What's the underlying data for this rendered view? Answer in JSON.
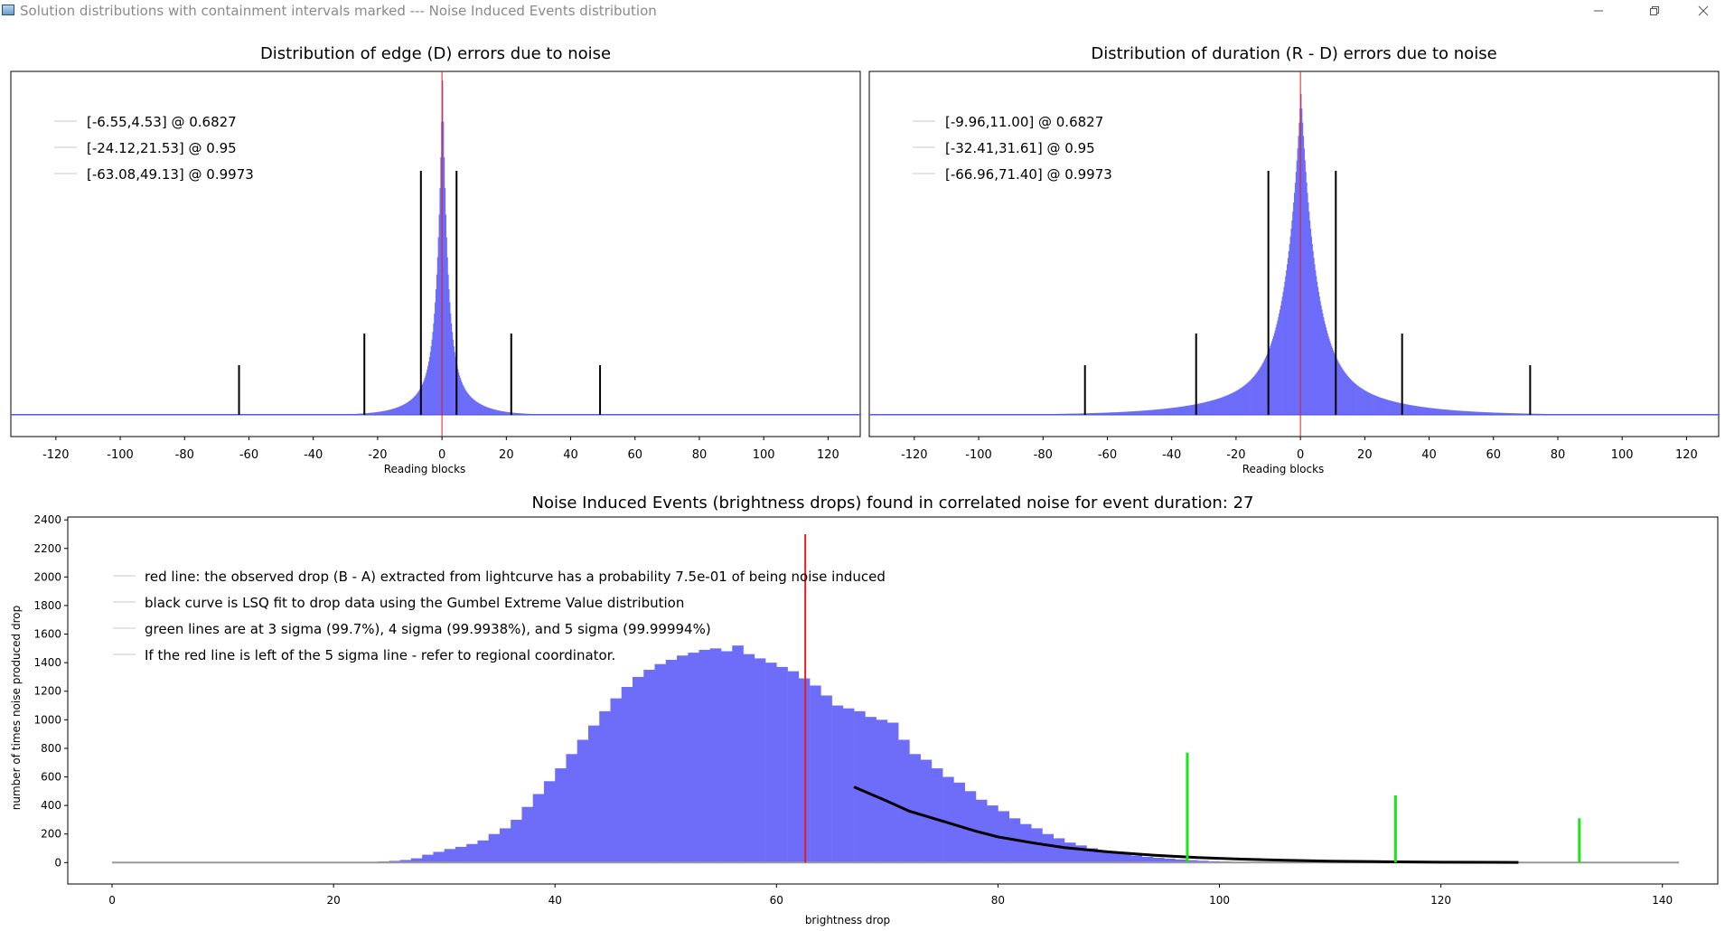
{
  "window": {
    "title": "Solution distributions with containment intervals marked --- Noise Induced Events distribution",
    "icon": "app-window-icon",
    "controls": [
      "minimize-icon",
      "restore-icon",
      "close-icon"
    ]
  },
  "colors": {
    "hist": "#6d6dfa",
    "observed": "#e11d1d",
    "sigma": "#19e619",
    "interval": "#000000",
    "legend_line": "#c8c8c8"
  },
  "chart_data": [
    {
      "type": "bar",
      "title": "Distribution of edge (D) errors due to noise",
      "xlabel": "Reading blocks",
      "xlim": [
        -134,
        130
      ],
      "xticks": [
        -120,
        -100,
        -80,
        -60,
        -40,
        -20,
        0,
        20,
        40,
        60,
        80,
        100,
        120
      ],
      "legend": [
        "[-6.55,4.53] @ 0.6827",
        "[-24.12,21.53] @ 0.95",
        "[-63.08,49.13] @ 0.9973"
      ],
      "intervals": [
        {
          "low": -6.55,
          "high": 4.53,
          "confidence": 0.6827
        },
        {
          "low": -24.12,
          "high": 21.53,
          "confidence": 0.95
        },
        {
          "low": -63.08,
          "high": 49.13,
          "confidence": 0.9973
        }
      ],
      "center_line": 0,
      "distribution_shape": {
        "peak": 1.0,
        "scale": 1.6
      }
    },
    {
      "type": "bar",
      "title": "Distribution of duration (R - D) errors due to noise",
      "xlabel": "Reading blocks",
      "xlim": [
        -134,
        130
      ],
      "xticks": [
        -120,
        -100,
        -80,
        -60,
        -40,
        -20,
        0,
        20,
        40,
        60,
        80,
        100,
        120
      ],
      "legend": [
        "[-9.96,11.00] @ 0.6827",
        "[-32.41,31.61] @ 0.95",
        "[-66.96,71.40] @ 0.9973"
      ],
      "intervals": [
        {
          "low": -9.96,
          "high": 11.0,
          "confidence": 0.6827
        },
        {
          "low": -32.41,
          "high": 31.61,
          "confidence": 0.95
        },
        {
          "low": -66.96,
          "high": 71.4,
          "confidence": 0.9973
        }
      ],
      "center_line": 0,
      "distribution_shape": {
        "peak": 0.96,
        "scale": 4.5
      }
    },
    {
      "type": "bar",
      "title": "Noise Induced Events (brightness drops) found in correlated noise for event duration: 27",
      "xlabel": "brightness drop",
      "ylabel": "number of times noise produced drop",
      "xlim": [
        -4,
        145
      ],
      "ylim": [
        -150,
        2420
      ],
      "xticks": [
        0,
        20,
        40,
        60,
        80,
        100,
        120,
        140
      ],
      "yticks": [
        0,
        200,
        400,
        600,
        800,
        1000,
        1200,
        1400,
        1600,
        1800,
        2000,
        2200,
        2400
      ],
      "legend": [
        "red line: the observed drop (B - A) extracted from lightcurve has a probability 7.5e-01 of being noise induced",
        "black curve is LSQ fit to drop data using the Gumbel Extreme Value distribution",
        "green lines are at 3 sigma (99.7%), 4 sigma (99.9938%), and 5 sigma (99.99994%)",
        "If the red line is left of the 5 sigma line - refer to regional coordinator."
      ],
      "observed_drop": {
        "x": 62.6,
        "y": 2300
      },
      "sigma_lines": [
        {
          "label": "3 sigma",
          "x": 97.1,
          "height": 770
        },
        {
          "label": "4 sigma",
          "x": 115.9,
          "height": 470
        },
        {
          "label": "5 sigma",
          "x": 132.5,
          "height": 310
        }
      ],
      "bins": {
        "start": 23,
        "width": 1,
        "values": [
          3,
          8,
          12,
          18,
          30,
          55,
          75,
          95,
          110,
          130,
          155,
          200,
          240,
          300,
          390,
          480,
          570,
          660,
          760,
          860,
          960,
          1060,
          1150,
          1230,
          1300,
          1350,
          1390,
          1420,
          1450,
          1470,
          1490,
          1500,
          1480,
          1520,
          1460,
          1430,
          1400,
          1370,
          1340,
          1290,
          1240,
          1170,
          1100,
          1080,
          1060,
          1020,
          1000,
          980,
          860,
          760,
          720,
          660,
          600,
          560,
          500,
          440,
          400,
          360,
          310,
          270,
          240,
          200,
          170,
          140,
          120,
          100,
          80,
          70,
          60,
          50,
          40,
          34,
          28,
          22,
          17,
          13,
          10,
          8,
          6,
          5,
          4,
          3,
          3,
          2,
          2,
          1,
          1,
          1
        ]
      },
      "gumbel_fit": {
        "x": [
          67,
          70,
          72,
          75,
          78,
          80,
          83,
          86,
          90,
          94,
          98,
          102,
          106,
          110,
          115,
          120,
          127
        ],
        "y": [
          530,
          430,
          360,
          290,
          220,
          180,
          140,
          105,
          75,
          52,
          35,
          24,
          16,
          10,
          6,
          3,
          1
        ]
      }
    }
  ]
}
